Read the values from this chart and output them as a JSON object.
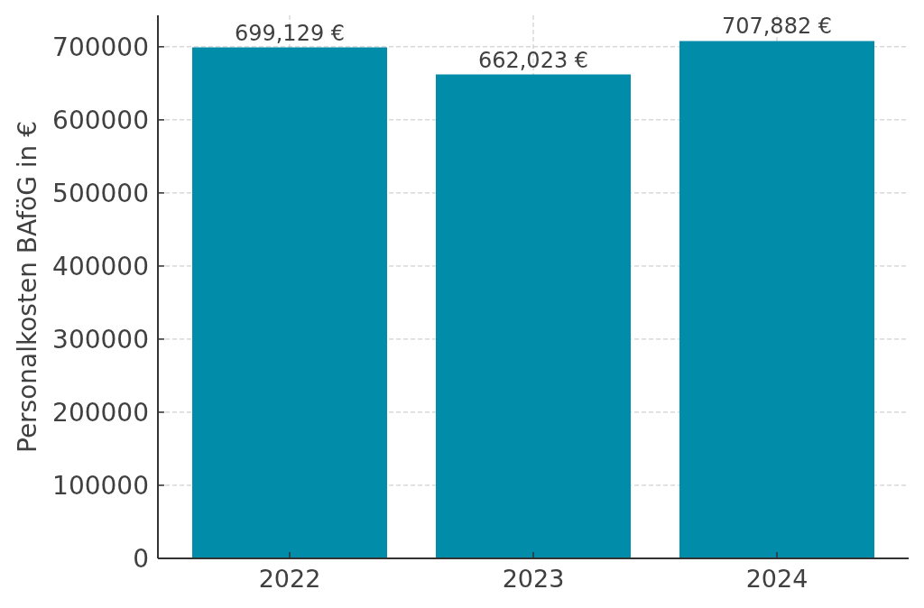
{
  "chart_data": {
    "type": "bar",
    "categories": [
      "2022",
      "2023",
      "2024"
    ],
    "values": [
      699129,
      662023,
      707882
    ],
    "value_labels": [
      "699,129 €",
      "662,023 €",
      "707,882 €"
    ],
    "color": "#018ca9",
    "ylabel": "Personalkosten BAföG in €",
    "ylim": [
      0,
      743000
    ],
    "yticks": [
      0,
      100000,
      200000,
      300000,
      400000,
      500000,
      600000,
      700000
    ],
    "grid": true
  }
}
